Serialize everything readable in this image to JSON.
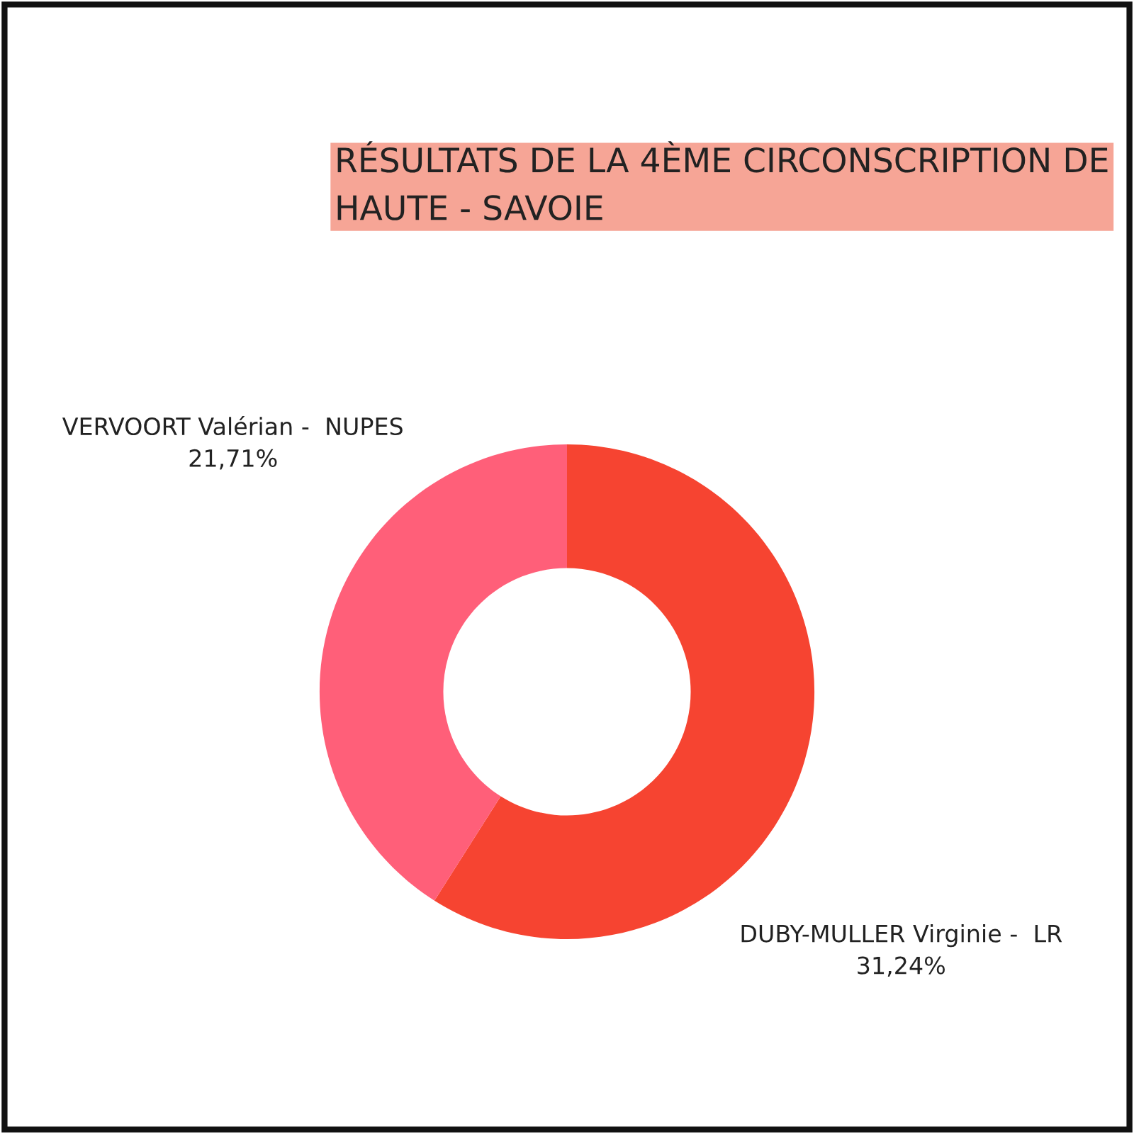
{
  "chart_data": {
    "type": "donut",
    "title": "RÉSULTATS DE LA 4ÈME CIRCONSCRIPTION DE HAUTE - SAVOIE",
    "categories": [
      "DUBY-MULLER Virginie -  LR",
      "VERVOORT Valérian -  NUPES"
    ],
    "values": [
      31.24,
      21.71
    ],
    "colors": [
      "#f64431",
      "#ff5f79"
    ],
    "value_labels": [
      "31,24%",
      "21,71%"
    ]
  }
}
